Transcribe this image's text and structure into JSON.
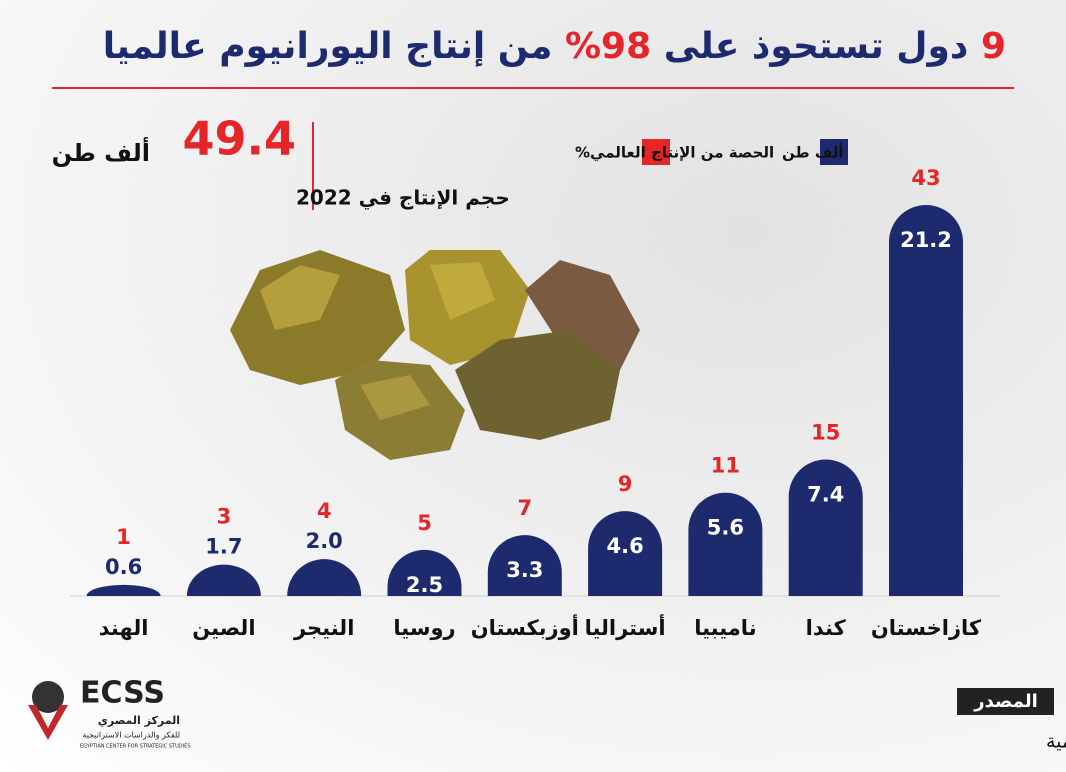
{
  "chart_data": {
    "type": "bar",
    "title": [
      "9",
      "دول تستحوذ على",
      "98%",
      "من إنتاج اليورانيوم عالميا"
    ],
    "highlight": {
      "value": 49.4,
      "unit": "ألف طن",
      "caption": "حجم الإنتاج في 2022"
    },
    "categories": [
      "كازاخستان",
      "كندا",
      "ناميبيا",
      "أستراليا",
      "أوزبكستان",
      "روسيا",
      "النيجر",
      "الصين",
      "الهند"
    ],
    "series": [
      {
        "name": "ألف طن",
        "color": "#1d2a6e",
        "values": [
          21.2,
          7.4,
          5.6,
          4.6,
          3.3,
          2.5,
          2,
          1.7,
          0.6
        ],
        "value_labels": [
          "21.2",
          "7.4",
          "5.6",
          "4.6",
          "3.3",
          "2.5",
          "2.0",
          "1.7",
          "0.6"
        ]
      },
      {
        "name": "الحصة من الإنتاج العالمي%",
        "color": "#e52528",
        "values": [
          43,
          15,
          11,
          9,
          7,
          5,
          4,
          3,
          1
        ]
      }
    ],
    "source": {
      "label": "المصدر",
      "text": "الجمعية النووية العالمية"
    },
    "logo": {
      "name": "ECSS",
      "arabic": "المركز المصري",
      "sub": "للفكر والدراسات الاستراتيجية",
      "english": "EGYPTIAN CENTER FOR STRATEGIC STUDIES"
    }
  }
}
